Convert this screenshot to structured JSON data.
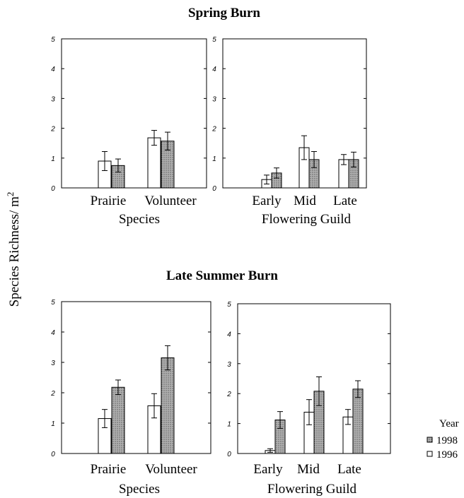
{
  "y_label": {
    "text": "Species  Richness/ m",
    "sup": "2"
  },
  "legend": {
    "title": "Year",
    "items": [
      {
        "label": "1998",
        "fill": "#b0b0b0"
      },
      {
        "label": "1996",
        "fill": "#ffffff"
      }
    ]
  },
  "sections": [
    {
      "title": "Spring Burn"
    },
    {
      "title": "Late Summer Burn"
    }
  ],
  "chart_data": [
    {
      "type": "bar",
      "section": "Spring Burn",
      "xlabel": "Species",
      "ylim": [
        0,
        5
      ],
      "yticks": [
        0,
        1,
        2,
        3,
        4,
        5
      ],
      "categories": [
        "Prairie",
        "Volunteer"
      ],
      "series": [
        {
          "key": "1996",
          "values": [
            0.9,
            1.68
          ],
          "errors": [
            0.32,
            0.25
          ]
        },
        {
          "key": "1998",
          "values": [
            0.75,
            1.57
          ],
          "errors": [
            0.22,
            0.3
          ]
        }
      ]
    },
    {
      "type": "bar",
      "section": "Spring Burn",
      "xlabel": "Flowering Guild",
      "ylim": [
        0,
        5
      ],
      "yticks": [
        0,
        1,
        2,
        3,
        4,
        5
      ],
      "categories": [
        "Early",
        "Mid",
        "Late"
      ],
      "series": [
        {
          "key": "1996",
          "values": [
            0.28,
            1.35,
            0.95
          ],
          "errors": [
            0.15,
            0.4,
            0.17
          ]
        },
        {
          "key": "1998",
          "values": [
            0.5,
            0.95,
            0.95
          ],
          "errors": [
            0.17,
            0.27,
            0.25
          ]
        }
      ]
    },
    {
      "type": "bar",
      "section": "Late Summer Burn",
      "xlabel": "Species",
      "ylim": [
        0,
        5
      ],
      "yticks": [
        0,
        1,
        2,
        3,
        4,
        5
      ],
      "categories": [
        "Prairie",
        "Volunteer"
      ],
      "series": [
        {
          "key": "1996",
          "values": [
            1.15,
            1.57
          ],
          "errors": [
            0.3,
            0.4
          ]
        },
        {
          "key": "1998",
          "values": [
            2.18,
            3.15
          ],
          "errors": [
            0.24,
            0.4
          ]
        }
      ]
    },
    {
      "type": "bar",
      "section": "Late Summer Burn",
      "xlabel": "Flowering Guild",
      "ylim": [
        0,
        5
      ],
      "yticks": [
        0,
        1,
        2,
        3,
        4,
        5
      ],
      "categories": [
        "Early",
        "Mid",
        "Late"
      ],
      "series": [
        {
          "key": "1996",
          "values": [
            0.1,
            1.38,
            1.22
          ],
          "errors": [
            0.06,
            0.42,
            0.25
          ]
        },
        {
          "key": "1998",
          "values": [
            1.12,
            2.08,
            2.15
          ],
          "errors": [
            0.28,
            0.48,
            0.28
          ]
        }
      ]
    }
  ]
}
